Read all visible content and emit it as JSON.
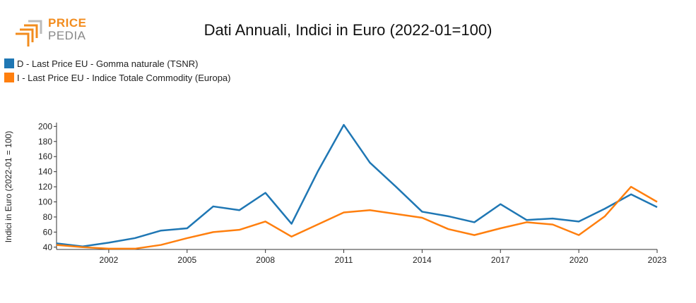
{
  "logo": {
    "line1": "PRICE",
    "line2": "PEDIA"
  },
  "colors": {
    "series1": "#1f77b4",
    "series2": "#ff7f0e"
  },
  "chart_data": {
    "type": "line",
    "title": "Dati Annuali, Indici in Euro (2022-01=100)",
    "ylabel": "Indici in Euro (2022-01 = 100)",
    "xlabel": "",
    "x": [
      2000,
      2001,
      2002,
      2003,
      2004,
      2005,
      2006,
      2007,
      2008,
      2009,
      2010,
      2011,
      2012,
      2013,
      2014,
      2015,
      2016,
      2017,
      2018,
      2019,
      2020,
      2021,
      2022,
      2023
    ],
    "xlim": [
      2000,
      2023
    ],
    "ylim": [
      37,
      205
    ],
    "xticks": [
      2002,
      2005,
      2008,
      2011,
      2014,
      2017,
      2020,
      2023
    ],
    "yticks": [
      40,
      60,
      80,
      100,
      120,
      140,
      160,
      180,
      200
    ],
    "legend_position": "top-left",
    "series": [
      {
        "name": "D - Last Price EU - Gomma naturale (TSNR)",
        "color": "#1f77b4",
        "values": [
          45,
          41,
          46,
          52,
          62,
          65,
          94,
          89,
          112,
          71,
          140,
          202,
          152,
          120,
          87,
          81,
          73,
          97,
          76,
          78,
          74,
          91,
          110,
          93
        ]
      },
      {
        "name": "I - Last Price EU - Indice Totale Commodity (Europa)",
        "color": "#ff7f0e",
        "values": [
          43,
          40,
          38,
          38,
          43,
          52,
          60,
          63,
          74,
          54,
          70,
          86,
          89,
          84,
          79,
          64,
          56,
          65,
          73,
          70,
          56,
          81,
          120,
          100
        ]
      }
    ]
  }
}
